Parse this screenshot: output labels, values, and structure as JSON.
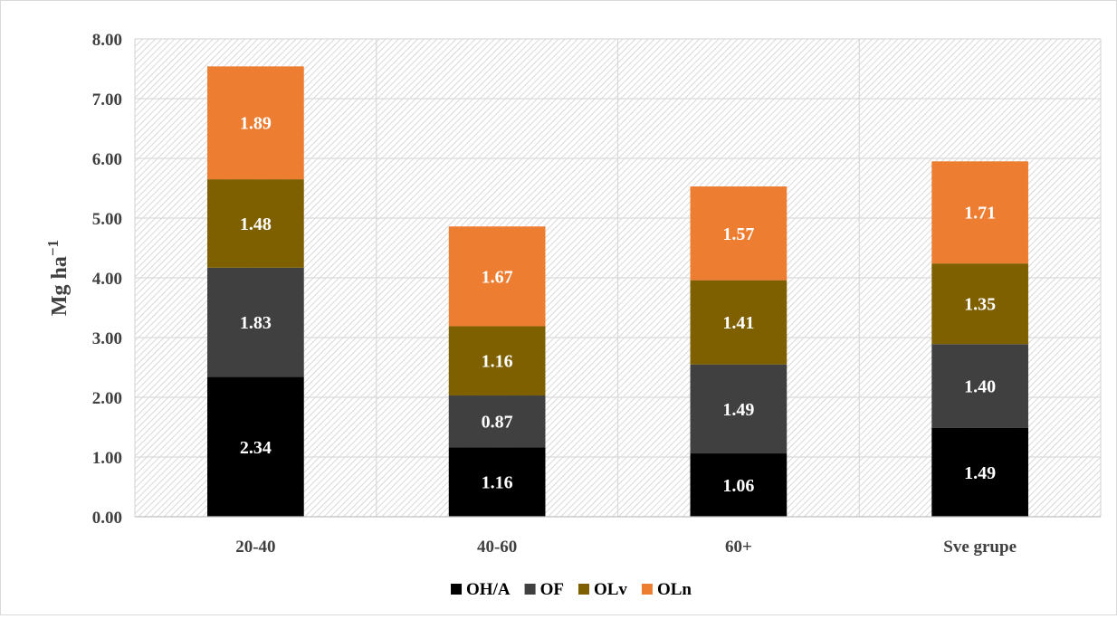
{
  "chart_data": {
    "type": "bar",
    "stacked": true,
    "categories": [
      "20-40",
      "40-60",
      "60+",
      "Sve grupe"
    ],
    "series": [
      {
        "name": "OH/A",
        "color": "#000000",
        "values": [
          2.34,
          1.16,
          1.06,
          1.49
        ],
        "labels": [
          "2.34",
          "1.16",
          "1.06",
          "1.49"
        ]
      },
      {
        "name": "OF",
        "color": "#404040",
        "values": [
          1.83,
          0.87,
          1.49,
          1.4
        ],
        "labels": [
          "1.83",
          "0.87",
          "1.49",
          "1.40"
        ]
      },
      {
        "name": "OLv",
        "color": "#7f6000",
        "values": [
          1.48,
          1.16,
          1.41,
          1.35
        ],
        "labels": [
          "1.48",
          "1.16",
          "1.41",
          "1.35"
        ]
      },
      {
        "name": "OLn",
        "color": "#ed7d31",
        "values": [
          1.89,
          1.67,
          1.57,
          1.71
        ],
        "labels": [
          "1.89",
          "1.67",
          "1.57",
          "1.71"
        ]
      }
    ],
    "title": "",
    "xlabel": "",
    "ylabel": "Mg  ha",
    "ylabel_superscript": "−1",
    "ylim": [
      0,
      8
    ],
    "yticks": [
      "0.00",
      "1.00",
      "2.00",
      "3.00",
      "4.00",
      "5.00",
      "6.00",
      "7.00",
      "8.00"
    ],
    "grid": true,
    "plot_background": "hatched",
    "legend_position": "bottom"
  }
}
